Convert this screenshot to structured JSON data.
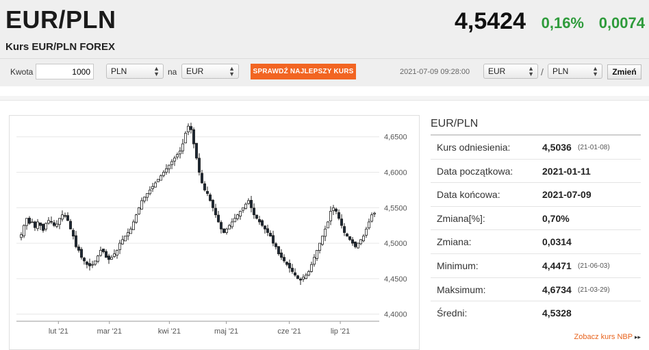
{
  "header": {
    "pair": "EUR/PLN",
    "subtitle": "Kurs EUR/PLN FOREX",
    "rate": "4,5424",
    "change_pct": "0,16%",
    "change_abs": "0,0074",
    "change_color": "#2e9b3b"
  },
  "converter": {
    "amount_label": "Kwota",
    "amount_value": "1000",
    "from_currency": "PLN",
    "to_label": "na",
    "to_currency": "EUR",
    "button_label": "SPRAWDŹ NAJLEPSZY KURS",
    "button_color": "#f26522"
  },
  "timestamp": "2021-07-09 09:28:00",
  "pair_selector": {
    "base": "EUR",
    "separator": "/",
    "quote": "PLN",
    "button_label": "Zmień"
  },
  "stats_panel": {
    "title": "EUR/PLN",
    "rows": [
      {
        "label": "Kurs odniesienia:",
        "value": "4,5036",
        "date": "(21-01-08)"
      },
      {
        "label": "Data początkowa:",
        "value": "2021-01-11",
        "date": ""
      },
      {
        "label": "Data końcowa:",
        "value": "2021-07-09",
        "date": ""
      },
      {
        "label": "Zmiana[%]:",
        "value": "0,70%",
        "date": ""
      },
      {
        "label": "Zmiana:",
        "value": "0,0314",
        "date": ""
      },
      {
        "label": "Minimum:",
        "value": "4,4471",
        "date": "(21-06-03)"
      },
      {
        "label": "Maksimum:",
        "value": "4,6734",
        "date": "(21-03-29)"
      },
      {
        "label": "Średni:",
        "value": "4,5328",
        "date": ""
      }
    ],
    "nbp_link": "Zobacz kurs NBP",
    "nbp_arrow": "▸▸"
  },
  "chart_data": {
    "type": "candlestick",
    "x_tick_labels": [
      "lut '21",
      "mar '21",
      "kwi '21",
      "maj '21",
      "cze '21",
      "lip '21"
    ],
    "y_tick_labels": [
      "4,4000",
      "4,4500",
      "4,5000",
      "4,5500",
      "4,6000",
      "4,6500"
    ],
    "ylim": [
      4.39,
      4.67
    ],
    "y_ticks": [
      4.4,
      4.45,
      4.5,
      4.55,
      4.6,
      4.65
    ],
    "grid": true,
    "x_positions_month_index": [
      0.7,
      1.55,
      2.55,
      3.5,
      4.55,
      5.4
    ],
    "close_series": [
      4.512,
      4.525,
      4.535,
      4.528,
      4.53,
      4.522,
      4.53,
      4.525,
      4.518,
      4.528,
      4.532,
      4.53,
      4.525,
      4.527,
      4.535,
      4.54,
      4.538,
      4.532,
      4.52,
      4.51,
      4.495,
      4.49,
      4.48,
      4.475,
      4.47,
      4.468,
      4.47,
      4.475,
      4.482,
      4.49,
      4.488,
      4.48,
      4.477,
      4.48,
      4.485,
      4.49,
      4.5,
      4.505,
      4.51,
      4.515,
      4.52,
      4.53,
      4.54,
      4.55,
      4.56,
      4.565,
      4.57,
      4.575,
      4.58,
      4.585,
      4.59,
      4.595,
      4.6,
      4.605,
      4.61,
      4.615,
      4.62,
      4.625,
      4.63,
      4.64,
      4.655,
      4.665,
      4.66,
      4.64,
      4.62,
      4.6,
      4.585,
      4.575,
      4.57,
      4.56,
      4.55,
      4.54,
      4.53,
      4.52,
      4.515,
      4.52,
      4.525,
      4.53,
      4.535,
      4.54,
      4.545,
      4.55,
      4.555,
      4.56,
      4.55,
      4.54,
      4.535,
      4.53,
      4.525,
      4.52,
      4.515,
      4.51,
      4.5,
      4.495,
      4.485,
      4.48,
      4.475,
      4.47,
      4.465,
      4.46,
      4.455,
      4.45,
      4.448,
      4.452,
      4.455,
      4.46,
      4.47,
      4.48,
      4.49,
      4.5,
      4.51,
      4.52,
      4.53,
      4.545,
      4.55,
      4.545,
      4.535,
      4.525,
      4.515,
      4.51,
      4.505,
      4.5,
      4.495,
      4.5,
      4.505,
      4.51,
      4.52,
      4.53,
      4.54,
      4.5424
    ]
  }
}
